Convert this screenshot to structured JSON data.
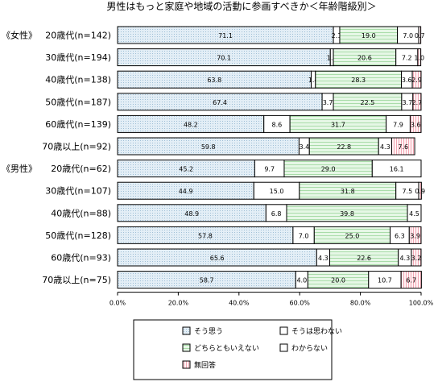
{
  "chart_data": {
    "type": "bar",
    "orientation": "horizontal",
    "stacked": true,
    "normalized": true,
    "title": "男性はもっと家庭や地域の活動に参画すべきか＜年齢階級別＞",
    "groups": [
      {
        "label": "《女性》",
        "rows": [
          0,
          5
        ]
      },
      {
        "label": "《男性》",
        "rows": [
          6,
          11
        ]
      }
    ],
    "categories": [
      "20歳代(n=142)",
      "30歳代(n=194)",
      "40歳代(n=138)",
      "50歳代(n=187)",
      "60歳代(n=139)",
      "70歳以上(n=92)",
      "20歳代(n=62)",
      "30歳代(n=107)",
      "40歳代(n=88)",
      "50歳代(n=128)",
      "60歳代(n=93)",
      "70歳以上(n=75)"
    ],
    "series": [
      {
        "name": "そう思う",
        "values": [
          71.1,
          70.1,
          63.8,
          67.4,
          48.2,
          59.8,
          45.2,
          44.9,
          48.9,
          57.8,
          65.6,
          58.7
        ]
      },
      {
        "name": "そうは思わない",
        "values": [
          2.1,
          1.0,
          1.4,
          3.7,
          8.6,
          3.4,
          9.7,
          15.0,
          6.8,
          7.0,
          4.3,
          4.0
        ]
      },
      {
        "name": "どちらともいえない",
        "values": [
          19.0,
          20.6,
          28.3,
          22.5,
          31.7,
          22.8,
          29.0,
          31.8,
          39.8,
          25.0,
          22.6,
          20.0
        ]
      },
      {
        "name": "わからない",
        "values": [
          7.0,
          7.2,
          3.6,
          3.7,
          7.9,
          4.3,
          16.1,
          7.5,
          4.5,
          6.3,
          4.3,
          10.7
        ]
      },
      {
        "name": "無回答",
        "values": [
          0.7,
          1.0,
          2.9,
          2.7,
          3.6,
          7.6,
          0,
          0.9,
          0,
          3.9,
          3.2,
          6.7
        ]
      }
    ],
    "labels": [
      [
        "71.1",
        "2.1",
        "19.0",
        "7.0",
        "0.7"
      ],
      [
        "70.1",
        "1.0",
        "20.6",
        "7.2",
        "1.0"
      ],
      [
        "63.8",
        "1.4",
        "28.3",
        "3.6",
        "2.9"
      ],
      [
        "67.4",
        "3.7",
        "22.5",
        "3.7",
        "2.7"
      ],
      [
        "48.2",
        "8.6",
        "31.7",
        "7.9",
        "3.6"
      ],
      [
        "59.8",
        "3.4",
        "22.8",
        "4.3",
        "7.6"
      ],
      [
        "45.2",
        "9.7",
        "29.0",
        "16.1",
        ""
      ],
      [
        "44.9",
        "15.0",
        "31.8",
        "7.5",
        "0.9"
      ],
      [
        "48.9",
        "6.8",
        "39.8",
        "4.5",
        ""
      ],
      [
        "57.8",
        "7.0",
        "25.0",
        "6.3",
        "3.9"
      ],
      [
        "65.6",
        "4.3",
        "22.6",
        "4.3",
        "3.2"
      ],
      [
        "58.7",
        "4.0",
        "20.0",
        "10.7",
        "6.7"
      ]
    ],
    "xlim": [
      0,
      100
    ],
    "xticks": [
      "0.0%",
      "20.0%",
      "40.0%",
      "60.0%",
      "80.0%",
      "100.0%"
    ],
    "colors": {
      "そう思う": "#dce9f2",
      "そうは思わない": "#ffffff",
      "どちらともいえない": "#dff5df",
      "わからない": "#ffffff",
      "無回答": "#fde6ea"
    },
    "legend_position": "bottom-center",
    "grid": false
  }
}
